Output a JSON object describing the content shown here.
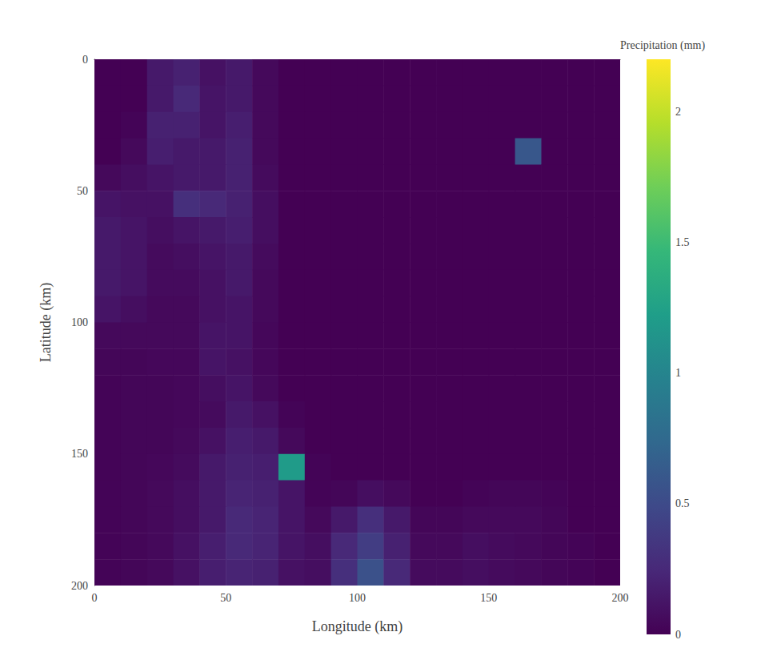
{
  "chart_data": {
    "type": "heatmap",
    "x_label": "Longitude (km)",
    "y_label": "Latitude (km)",
    "x": [
      5,
      15,
      25,
      35,
      45,
      55,
      65,
      75,
      85,
      95,
      105,
      115,
      125,
      135,
      145,
      155,
      165,
      175,
      185,
      195
    ],
    "y": [
      5,
      15,
      25,
      35,
      45,
      55,
      65,
      75,
      85,
      95,
      105,
      115,
      125,
      135,
      145,
      155,
      165,
      175,
      185,
      195
    ],
    "z": [
      [
        0,
        0,
        0.15,
        0.2,
        0.1,
        0.15,
        0.05,
        0,
        0,
        0,
        0,
        0,
        0,
        0,
        0,
        0,
        0,
        0,
        0,
        0
      ],
      [
        0,
        0,
        0.15,
        0.25,
        0.12,
        0.15,
        0.05,
        0,
        0,
        0,
        0,
        0,
        0,
        0,
        0,
        0,
        0,
        0,
        0,
        0
      ],
      [
        0,
        0.02,
        0.2,
        0.2,
        0.12,
        0.18,
        0.05,
        0,
        0,
        0,
        0,
        0,
        0,
        0,
        0,
        0,
        0,
        0,
        0,
        0
      ],
      [
        0,
        0.05,
        0.18,
        0.15,
        0.15,
        0.2,
        0.05,
        0,
        0,
        0,
        0,
        0,
        0,
        0,
        0,
        0,
        0.6,
        0,
        0,
        0
      ],
      [
        0.05,
        0.08,
        0.12,
        0.15,
        0.15,
        0.2,
        0.06,
        0,
        0,
        0,
        0,
        0,
        0,
        0,
        0,
        0,
        0,
        0,
        0,
        0
      ],
      [
        0.12,
        0.1,
        0.1,
        0.3,
        0.25,
        0.2,
        0.08,
        0,
        0,
        0,
        0,
        0,
        0,
        0,
        0,
        0,
        0,
        0,
        0,
        0
      ],
      [
        0.15,
        0.12,
        0.08,
        0.12,
        0.15,
        0.18,
        0.08,
        0,
        0,
        0,
        0,
        0,
        0,
        0,
        0,
        0,
        0,
        0,
        0,
        0
      ],
      [
        0.15,
        0.12,
        0.06,
        0.08,
        0.12,
        0.15,
        0.06,
        0,
        0,
        0,
        0,
        0,
        0,
        0,
        0,
        0,
        0,
        0,
        0,
        0
      ],
      [
        0.15,
        0.12,
        0.06,
        0.06,
        0.1,
        0.15,
        0.05,
        0,
        0,
        0,
        0,
        0,
        0,
        0,
        0,
        0,
        0,
        0,
        0,
        0
      ],
      [
        0.12,
        0.08,
        0.05,
        0.05,
        0.1,
        0.12,
        0.05,
        0,
        0,
        0,
        0,
        0,
        0,
        0,
        0,
        0,
        0,
        0,
        0,
        0
      ],
      [
        0.05,
        0.05,
        0.05,
        0.05,
        0.12,
        0.12,
        0.04,
        0,
        0,
        0,
        0,
        0,
        0,
        0,
        0,
        0,
        0,
        0,
        0,
        0
      ],
      [
        0.03,
        0.03,
        0.04,
        0.04,
        0.12,
        0.1,
        0.04,
        0,
        0,
        0,
        0,
        0,
        0,
        0,
        0,
        0,
        0,
        0,
        0,
        0
      ],
      [
        0.02,
        0.03,
        0.03,
        0.04,
        0.08,
        0.12,
        0.05,
        0,
        0,
        0,
        0,
        0,
        0,
        0,
        0,
        0,
        0,
        0,
        0,
        0
      ],
      [
        0.02,
        0.03,
        0.03,
        0.04,
        0.06,
        0.15,
        0.1,
        0.02,
        0,
        0,
        0,
        0,
        0,
        0,
        0,
        0,
        0,
        0,
        0,
        0
      ],
      [
        0.02,
        0.03,
        0.03,
        0.05,
        0.1,
        0.18,
        0.15,
        0.05,
        0,
        0,
        0,
        0,
        0,
        0,
        0,
        0,
        0,
        0,
        0,
        0
      ],
      [
        0.02,
        0.03,
        0.04,
        0.06,
        0.15,
        0.2,
        0.18,
        1.2,
        0.02,
        0,
        0,
        0,
        0,
        0,
        0,
        0,
        0,
        0,
        0,
        0
      ],
      [
        0.02,
        0.03,
        0.05,
        0.08,
        0.15,
        0.22,
        0.2,
        0.12,
        0.02,
        0.03,
        0.08,
        0.05,
        0,
        0,
        0.02,
        0.03,
        0.03,
        0.02,
        0,
        0
      ],
      [
        0.02,
        0.03,
        0.05,
        0.08,
        0.15,
        0.25,
        0.22,
        0.12,
        0.05,
        0.15,
        0.3,
        0.15,
        0.03,
        0.03,
        0.05,
        0.05,
        0.05,
        0.03,
        0,
        0
      ],
      [
        0.02,
        0.03,
        0.05,
        0.1,
        0.18,
        0.25,
        0.22,
        0.12,
        0.08,
        0.25,
        0.4,
        0.2,
        0.05,
        0.05,
        0.08,
        0.06,
        0.05,
        0.03,
        0.02,
        0
      ],
      [
        0.02,
        0.03,
        0.05,
        0.1,
        0.18,
        0.22,
        0.2,
        0.1,
        0.08,
        0.3,
        0.55,
        0.25,
        0.06,
        0.06,
        0.08,
        0.06,
        0.05,
        0.03,
        0.02,
        0
      ]
    ],
    "xlim": [
      0,
      200
    ],
    "xticks": [
      0,
      50,
      100,
      150,
      200
    ],
    "ylim": [
      200,
      0
    ],
    "yticks": [
      0,
      50,
      100,
      150,
      200
    ],
    "colorbar": {
      "title": "Precipitation (mm)",
      "range": [
        0,
        2.2
      ],
      "ticks": [
        0,
        0.5,
        1,
        1.5,
        2
      ]
    },
    "grid": false
  }
}
